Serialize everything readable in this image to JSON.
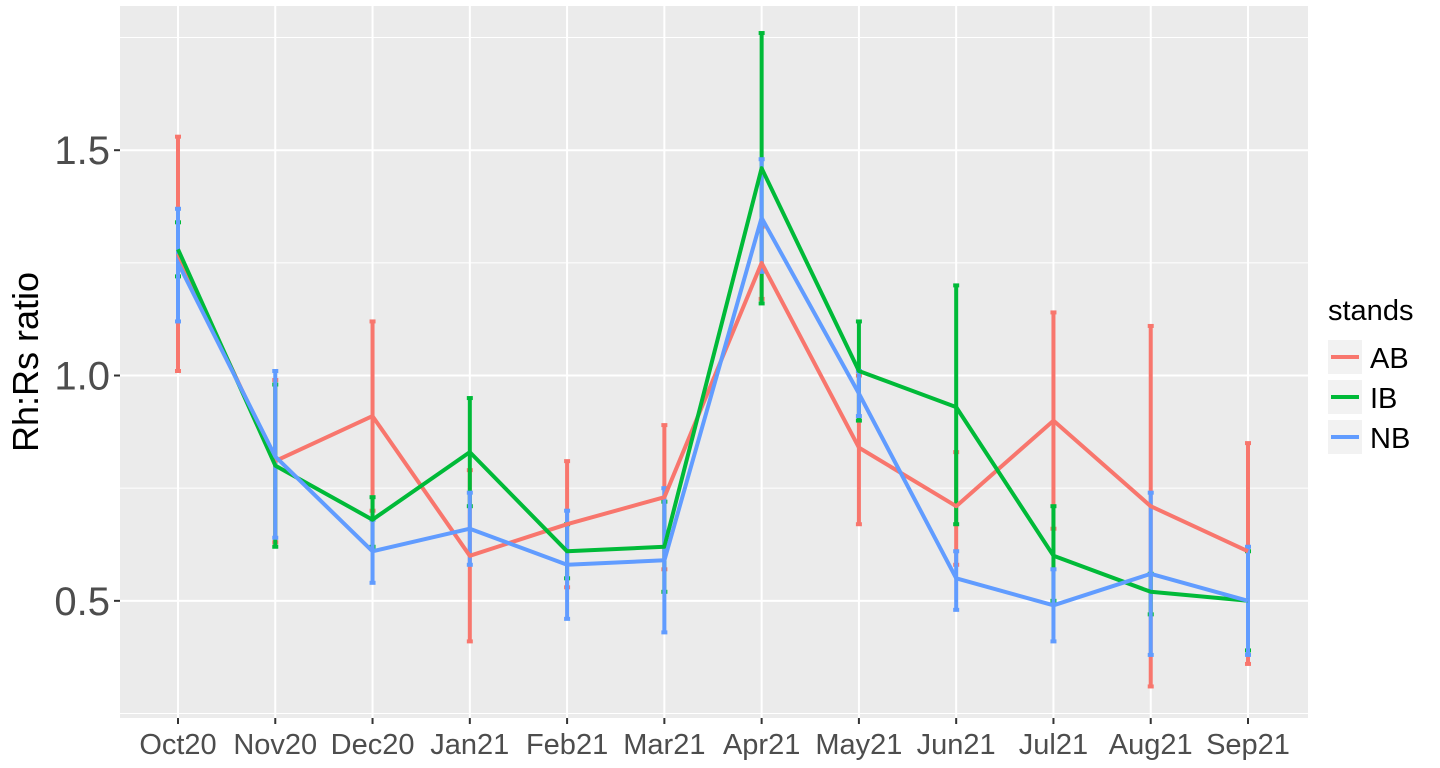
{
  "chart_data": {
    "type": "line",
    "title": "",
    "xlabel": "",
    "ylabel": "Rh:Rs ratio",
    "categories": [
      "Oct20",
      "Nov20",
      "Dec20",
      "Jan21",
      "Feb21",
      "Mar21",
      "Apr21",
      "May21",
      "Jun21",
      "Jul21",
      "Aug21",
      "Sep21"
    ],
    "yticks": [
      "0.5",
      "1.0",
      "1.5"
    ],
    "ytick_values": [
      0.5,
      1.0,
      1.5
    ],
    "ylim": [
      0.24,
      1.82
    ],
    "grid": true,
    "legend": {
      "title": "stands",
      "position": "right"
    },
    "series": [
      {
        "name": "AB",
        "color": "#F8766D",
        "values": [
          1.27,
          0.81,
          0.91,
          0.6,
          0.67,
          0.73,
          1.25,
          0.84,
          0.71,
          0.9,
          0.71,
          0.61
        ],
        "err_low": [
          1.01,
          0.63,
          0.7,
          0.41,
          0.53,
          0.57,
          1.17,
          0.67,
          0.58,
          0.66,
          0.31,
          0.36
        ],
        "err_high": [
          1.53,
          0.99,
          1.12,
          0.79,
          0.81,
          0.89,
          1.33,
          1.0,
          0.83,
          1.14,
          1.11,
          0.85
        ]
      },
      {
        "name": "IB",
        "color": "#00BA38",
        "values": [
          1.28,
          0.8,
          0.68,
          0.83,
          0.61,
          0.62,
          1.46,
          1.01,
          0.93,
          0.6,
          0.52,
          0.5
        ],
        "err_low": [
          1.22,
          0.62,
          0.62,
          0.71,
          0.55,
          0.52,
          1.16,
          0.9,
          0.67,
          0.5,
          0.47,
          0.39
        ],
        "err_high": [
          1.34,
          0.98,
          0.73,
          0.95,
          0.67,
          0.72,
          1.76,
          1.12,
          1.2,
          0.71,
          0.56,
          0.61
        ]
      },
      {
        "name": "NB",
        "color": "#619CFF",
        "values": [
          1.25,
          0.82,
          0.61,
          0.66,
          0.58,
          0.59,
          1.35,
          0.96,
          0.55,
          0.49,
          0.56,
          0.5
        ],
        "err_low": [
          1.12,
          0.64,
          0.54,
          0.58,
          0.46,
          0.43,
          1.23,
          0.91,
          0.48,
          0.41,
          0.38,
          0.38
        ],
        "err_high": [
          1.37,
          1.01,
          0.68,
          0.74,
          0.7,
          0.75,
          1.48,
          1.01,
          0.61,
          0.57,
          0.74,
          0.62
        ]
      }
    ]
  }
}
